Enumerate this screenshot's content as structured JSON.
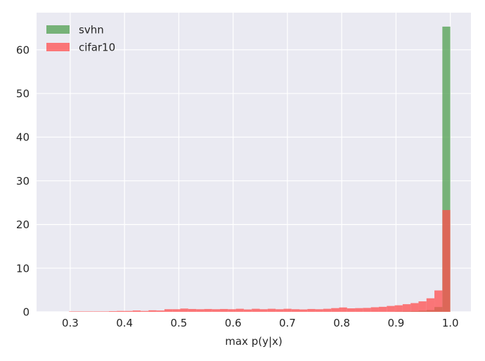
{
  "chart_data": {
    "type": "histogram",
    "xlabel": "max p(y|x)",
    "ylabel": "",
    "xlim": [
      0.238,
      1.038
    ],
    "ylim": [
      0,
      68.5
    ],
    "x_ticks": [
      0.3,
      0.4,
      0.5,
      0.6,
      0.7,
      0.8,
      0.9,
      1.0
    ],
    "x_tick_labels": [
      "0.3",
      "0.4",
      "0.5",
      "0.6",
      "0.7",
      "0.8",
      "0.9",
      "1.0"
    ],
    "y_ticks": [
      0,
      10,
      20,
      30,
      40,
      50,
      60
    ],
    "y_tick_labels": [
      "0",
      "10",
      "20",
      "30",
      "40",
      "50",
      "60"
    ],
    "grid": true,
    "legend_position": "top-left",
    "bins": {
      "start": 0.298,
      "end": 1.0,
      "count": 48
    },
    "series": [
      {
        "name": "svhn",
        "color": "#4f9f4f",
        "opacity": 0.75,
        "values": [
          0,
          0,
          0,
          0,
          0,
          0,
          0,
          0,
          0,
          0,
          0,
          0,
          0,
          0,
          0,
          0,
          0,
          0,
          0,
          0,
          0,
          0,
          0,
          0,
          0,
          0,
          0,
          0,
          0,
          0,
          0,
          0,
          0,
          0,
          0,
          0,
          0,
          0,
          0,
          0,
          0,
          0.05,
          0.1,
          0.15,
          0.25,
          0.4,
          1.1,
          65.3
        ]
      },
      {
        "name": "cifar10",
        "color": "#ff4d4d",
        "opacity": 0.75,
        "values": [
          0.1,
          0.1,
          0.1,
          0.1,
          0.1,
          0.15,
          0.2,
          0.2,
          0.3,
          0.2,
          0.35,
          0.3,
          0.6,
          0.6,
          0.75,
          0.65,
          0.6,
          0.65,
          0.6,
          0.65,
          0.6,
          0.7,
          0.55,
          0.7,
          0.6,
          0.7,
          0.6,
          0.7,
          0.6,
          0.55,
          0.65,
          0.6,
          0.7,
          0.85,
          1.0,
          0.8,
          0.85,
          0.9,
          1.05,
          1.15,
          1.35,
          1.5,
          1.75,
          2.0,
          2.4,
          3.1,
          4.9,
          23.3
        ]
      }
    ]
  }
}
